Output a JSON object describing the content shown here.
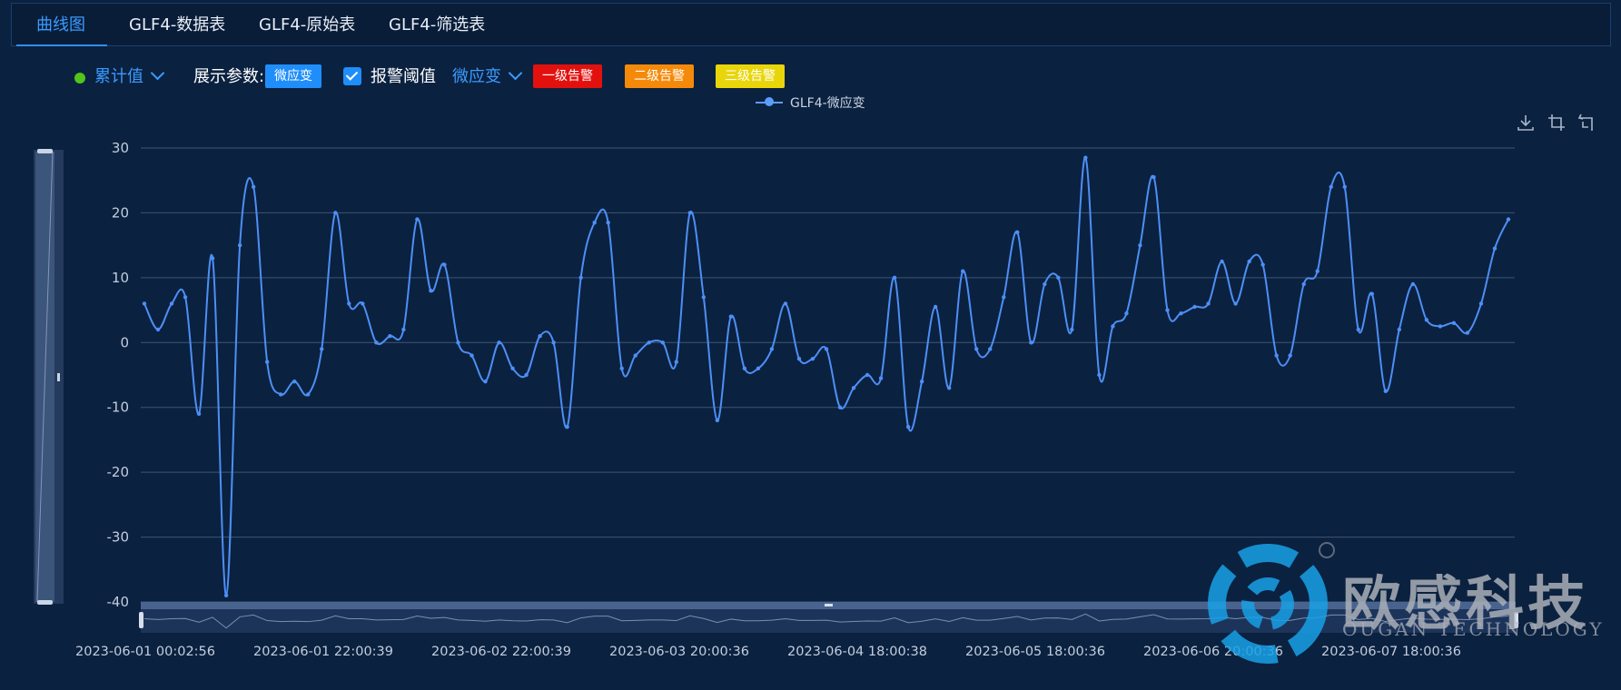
{
  "tabs": [
    "曲线图",
    "GLF4-数据表",
    "GLF4-原始表",
    "GLF4-筛选表"
  ],
  "toolbar": {
    "mode_label": "累计值",
    "param_label": "展示参数:",
    "param_tag": "微应变",
    "threshold_label": "报警阈值",
    "threshold_select": "微应变",
    "alarm1": "一级告警",
    "alarm2": "二级告警",
    "alarm3": "三级告警"
  },
  "colors": {
    "accent": "#2f8ff5",
    "line": "#4d8ff5",
    "alarm1": "#e3110e",
    "alarm2": "#f58a0a",
    "alarm3": "#e8d60a",
    "status_dot": "#52c41a"
  },
  "icons": [
    "download-icon",
    "zoom-select-icon",
    "zoom-reset-icon"
  ],
  "watermark": {
    "name": "欧感科技",
    "sub": "OUGAN TECHNOLOGY",
    "reg": "R"
  },
  "chart_data": {
    "type": "line",
    "title": "",
    "xlabel": "",
    "ylabel": "",
    "ylim": [
      -40,
      30
    ],
    "yticks": [
      30,
      20,
      10,
      0,
      -10,
      -20,
      -30,
      -40
    ],
    "xtick_labels": [
      "2023-06-01 00:02:56",
      "2023-06-01 22:00:39",
      "2023-06-02 22:00:39",
      "2023-06-03 20:00:36",
      "2023-06-04 18:00:38",
      "2023-06-05 18:00:36",
      "2023-06-06 20:00:36",
      "2023-06-07 18:00:36"
    ],
    "grid": true,
    "legend_position": "top-center",
    "series": [
      {
        "name": "GLF4-微应变",
        "values": [
          6,
          2,
          6,
          7,
          -11,
          13,
          -39,
          15,
          24,
          -3,
          -8,
          -6,
          -8,
          -1,
          20,
          6,
          6,
          0,
          1,
          2,
          19,
          8,
          12,
          0,
          -2,
          -6,
          0,
          -4,
          -5,
          1,
          0,
          -13,
          10,
          18.5,
          18.5,
          -4,
          -2,
          0,
          0,
          -3,
          20,
          7,
          -12,
          4,
          -4,
          -4,
          -1,
          6,
          -2.5,
          -2.5,
          -1,
          -10,
          -7,
          -5,
          -5.5,
          10,
          -13,
          -6,
          5.5,
          -7,
          11,
          -1,
          -1,
          7,
          17,
          0,
          9,
          10,
          2,
          28.5,
          -5,
          2.5,
          4.5,
          15,
          25.5,
          5,
          4.5,
          5.5,
          6,
          12.5,
          6,
          12.5,
          12,
          -2,
          -2,
          9,
          11,
          24,
          24,
          2,
          7.5,
          -7.5,
          2,
          9,
          3.5,
          2.5,
          3,
          1.5,
          6,
          14.5,
          19
        ]
      }
    ]
  }
}
